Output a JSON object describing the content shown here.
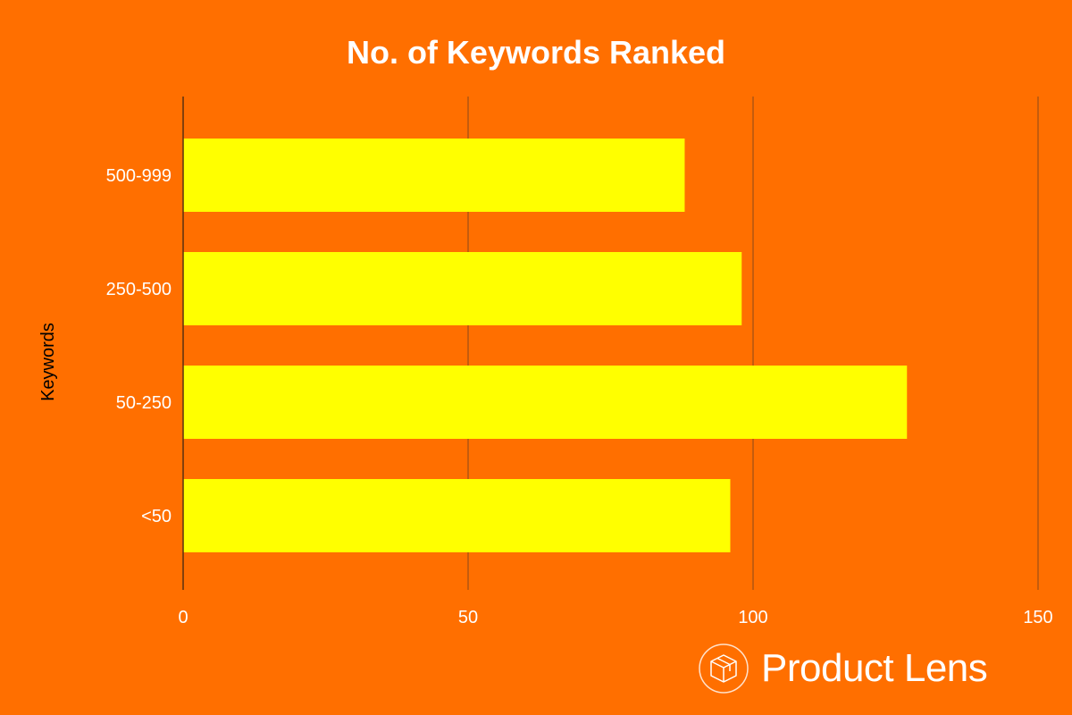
{
  "chart_data": {
    "type": "bar",
    "orientation": "horizontal",
    "title": "No. of Keywords Ranked",
    "xlabel": "",
    "ylabel": "Keywords",
    "categories": [
      "500-999",
      "250-500",
      "50-250",
      "<50"
    ],
    "values": [
      88,
      98,
      127,
      96
    ],
    "xlim": [
      0,
      150
    ],
    "xticks": [
      0,
      50,
      100,
      150
    ],
    "grid": true,
    "legend": "none",
    "colors": {
      "background": "#ff6f00",
      "bar": "#ffff00",
      "grid": "#8a4a1a",
      "text": "#ffffff",
      "axis_label": "#000000"
    }
  },
  "logo": {
    "text": "Product Lens",
    "icon": "box-in-circle-icon"
  }
}
